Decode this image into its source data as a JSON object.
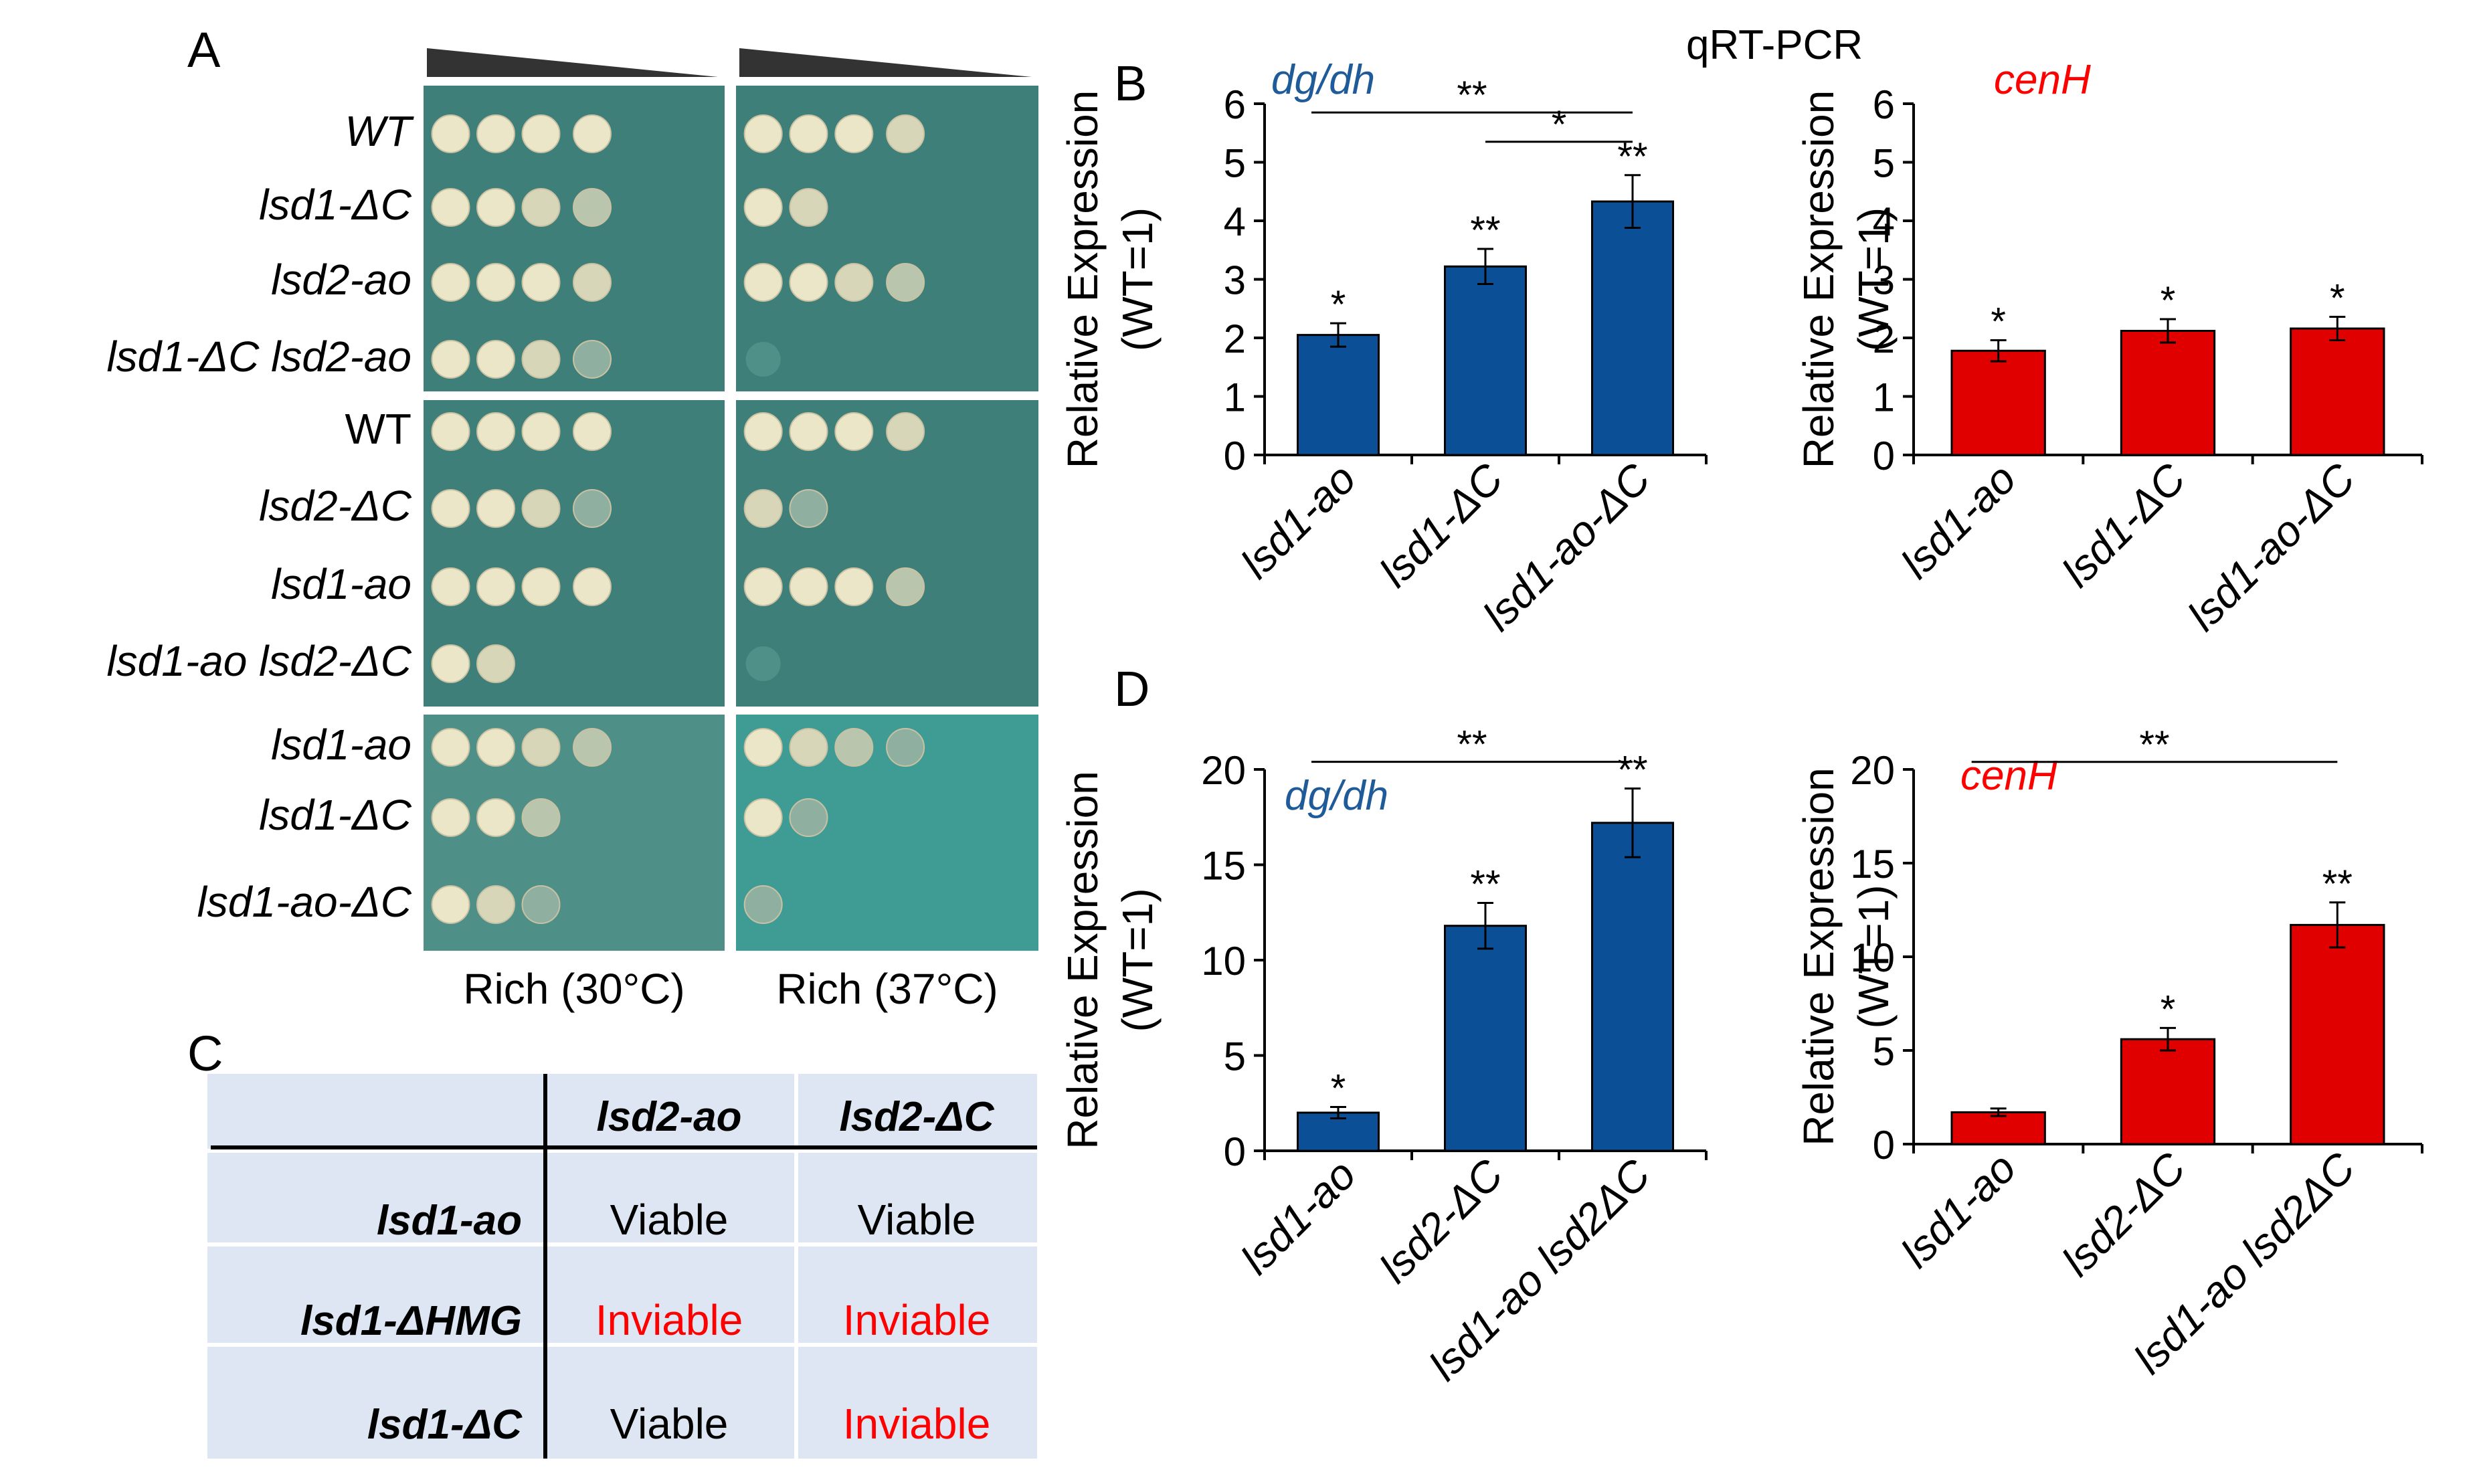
{
  "panel_letters": {
    "a": "A",
    "b": "B",
    "c": "C",
    "d": "D"
  },
  "header": "qRT-PCR",
  "spot_assay": {
    "groups": [
      {
        "strains": [
          "WT",
          "lsd1-ΔC",
          "lsd2-ao",
          "lsd1-ΔC lsd2-ao"
        ],
        "italic": [
          true,
          true,
          true,
          true
        ],
        "growth_30": [
          [
            4,
            4,
            4,
            4
          ],
          [
            4,
            4,
            3,
            2
          ],
          [
            4,
            4,
            4,
            3
          ],
          [
            4,
            4,
            3,
            1
          ]
        ],
        "growth_37": [
          [
            4,
            4,
            4,
            3
          ],
          [
            4,
            3,
            0,
            0
          ],
          [
            4,
            4,
            3,
            2
          ],
          [
            0,
            0,
            0,
            0
          ]
        ]
      },
      {
        "strains": [
          "WT",
          "lsd2-ΔC",
          "lsd1-ao",
          "lsd1-ao lsd2-ΔC"
        ],
        "italic": [
          false,
          true,
          true,
          true
        ],
        "growth_30": [
          [
            4,
            4,
            4,
            4
          ],
          [
            4,
            4,
            3,
            1
          ],
          [
            4,
            4,
            4,
            4
          ],
          [
            4,
            3,
            0,
            0
          ]
        ],
        "growth_37": [
          [
            4,
            4,
            4,
            3
          ],
          [
            3,
            1,
            0,
            0
          ],
          [
            4,
            4,
            4,
            2
          ],
          [
            0,
            0,
            0,
            0
          ]
        ]
      },
      {
        "strains": [
          "lsd1-ao",
          "lsd1-ΔC",
          "lsd1-ao-ΔC"
        ],
        "italic": [
          true,
          true,
          true
        ],
        "growth_30": [
          [
            4,
            4,
            3,
            2
          ],
          [
            4,
            4,
            2,
            0
          ],
          [
            4,
            3,
            1,
            0
          ]
        ],
        "growth_37": [
          [
            4,
            3,
            2,
            1
          ],
          [
            4,
            1,
            0,
            0
          ],
          [
            1,
            0,
            0,
            0
          ]
        ]
      }
    ],
    "conditions": [
      "Rich (30°C)",
      "Rich (37°C)"
    ]
  },
  "table": {
    "col_headers": [
      "lsd2-ao",
      "lsd2-ΔC"
    ],
    "rows": [
      {
        "label": "lsd1-ao",
        "cells": [
          "Viable",
          "Viable"
        ]
      },
      {
        "label": "lsd1-ΔHMG",
        "cells": [
          "Inviable",
          "Inviable"
        ]
      },
      {
        "label": "lsd1-ΔC",
        "cells": [
          "Viable",
          "Inviable"
        ]
      }
    ],
    "colors": {
      "Viable": "#000000",
      "Inviable": "#ff0000"
    }
  },
  "chart_data": [
    {
      "type": "bar",
      "panel": "B",
      "title": "dg/dh",
      "title_color": "#1f5b99",
      "bar_color": "#0b4f96",
      "categories": [
        "lsd1-ao",
        "lsd1-ΔC",
        "lsd1-ao-ΔC"
      ],
      "values": [
        2.05,
        3.22,
        4.33
      ],
      "errors": [
        0.2,
        0.3,
        0.45
      ],
      "significance": [
        "*",
        "**",
        "**"
      ],
      "ylabel": "Relative Expression (WT=1)",
      "ylim": [
        0,
        6
      ],
      "yticks": [
        "0",
        "1",
        "2",
        "3",
        "4",
        "5",
        "6"
      ],
      "brackets": [
        {
          "from": 0,
          "to": 2,
          "label": "**"
        },
        {
          "from": 1,
          "to": 2,
          "label": "*"
        }
      ]
    },
    {
      "type": "bar",
      "panel": "B",
      "title": "cenH",
      "title_color": "#ff0000",
      "bar_color": "#e00000",
      "categories": [
        "lsd1-ao",
        "lsd1-ΔC",
        "lsd1-ao-ΔC"
      ],
      "values": [
        1.78,
        2.12,
        2.16
      ],
      "errors": [
        0.18,
        0.2,
        0.2
      ],
      "significance": [
        "*",
        "*",
        "*"
      ],
      "ylabel": "Relative Expression (WT=1)",
      "ylim": [
        0,
        6
      ],
      "yticks": [
        "0",
        "1",
        "2",
        "3",
        "4",
        "5",
        "6"
      ],
      "brackets": []
    },
    {
      "type": "bar",
      "panel": "D",
      "title": "dg/dh",
      "title_color": "#1f5b99",
      "bar_color": "#0b4f96",
      "categories": [
        "lsd1-ao",
        "lsd2-ΔC",
        "lsd1-ao lsd2ΔC"
      ],
      "values": [
        2.0,
        11.8,
        17.2
      ],
      "errors": [
        0.3,
        1.2,
        1.8
      ],
      "significance": [
        "*",
        "**",
        "**"
      ],
      "ylabel": "Relative Expression (WT=1)",
      "ylim": [
        0,
        20
      ],
      "yticks": [
        "0",
        "5",
        "10",
        "15",
        "20"
      ],
      "brackets": [
        {
          "from": 0,
          "to": 2,
          "label": "**"
        }
      ]
    },
    {
      "type": "bar",
      "panel": "D",
      "title": "cenH",
      "title_color": "#ff0000",
      "bar_color": "#e00000",
      "categories": [
        "lsd1-ao",
        "lsd2-ΔC",
        "lsd1-ao lsd2ΔC"
      ],
      "values": [
        1.7,
        5.6,
        11.7
      ],
      "errors": [
        0.2,
        0.6,
        1.2
      ],
      "significance": [
        "",
        "*",
        "**"
      ],
      "ylabel": "Relative Expression (WT=1)",
      "ylim": [
        0,
        20
      ],
      "yticks": [
        "0",
        "5",
        "10",
        "15",
        "20"
      ],
      "brackets": [
        {
          "from": 0,
          "to": 2,
          "label": "**"
        }
      ]
    }
  ]
}
